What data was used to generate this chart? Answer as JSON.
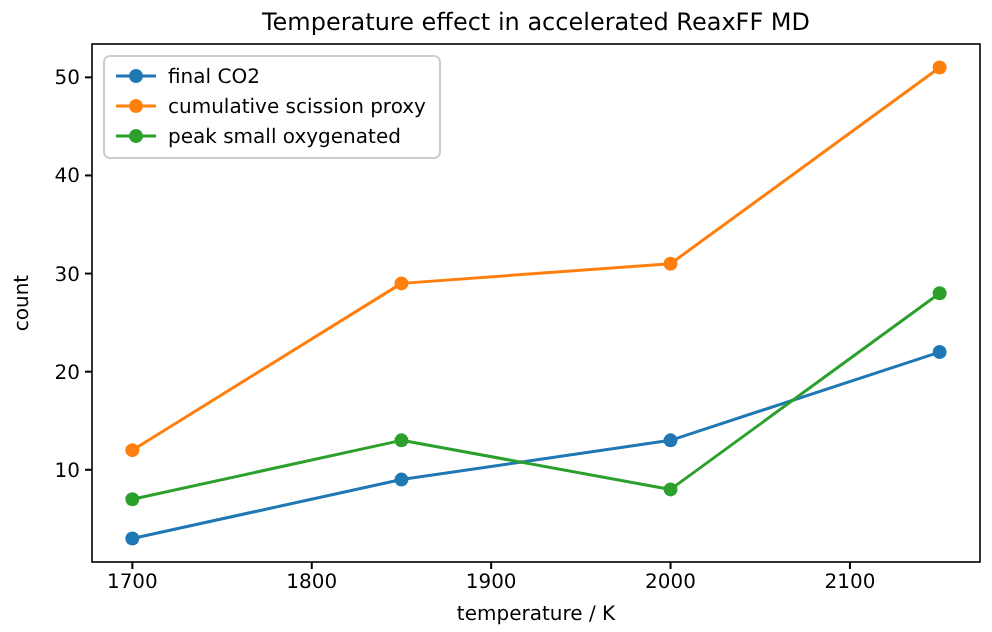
{
  "chart_data": {
    "type": "line",
    "title": "Temperature effect in accelerated ReaxFF MD",
    "xlabel": "temperature / K",
    "ylabel": "count",
    "x": [
      1700,
      1850,
      2000,
      2150
    ],
    "series": [
      {
        "name": "final CO2",
        "color": "#1f77b4",
        "values": [
          3,
          9,
          13,
          22
        ]
      },
      {
        "name": "cumulative scission proxy",
        "color": "#ff7f0e",
        "values": [
          12,
          29,
          31,
          51
        ]
      },
      {
        "name": "peak small oxygenated",
        "color": "#2ca02c",
        "values": [
          7,
          13,
          8,
          28
        ]
      }
    ],
    "xlim": [
      1677.5,
      2172.5
    ],
    "xticks": [
      1700,
      1800,
      1900,
      2000,
      2100
    ],
    "ylim": [
      0.6,
      53.4
    ],
    "yticks": [
      10,
      20,
      30,
      40,
      50
    ],
    "grid": false,
    "legend": "top left",
    "marker": "circle",
    "line_style": "solid"
  }
}
